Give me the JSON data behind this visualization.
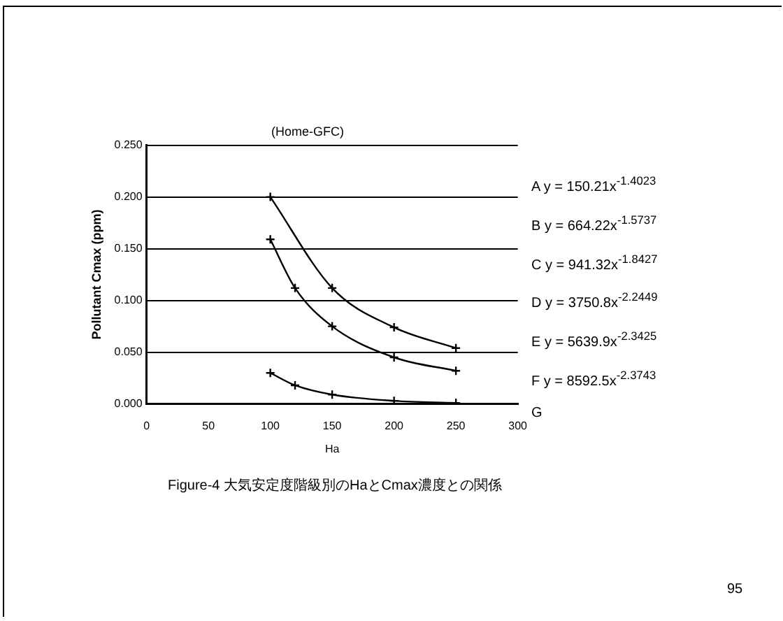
{
  "chart_data": {
    "type": "line",
    "title": "(Home-GFC)",
    "xlabel": "Ha",
    "ylabel": "Pollutant Cmax (ppm)",
    "x": [
      100,
      120,
      150,
      200,
      250
    ],
    "series": [
      {
        "color": "#000000",
        "x": [
          100,
          150,
          200,
          250
        ],
        "values": [
          0.2,
          0.112,
          0.074,
          0.054
        ]
      },
      {
        "color": "#000000",
        "values": [
          0.159,
          0.112,
          0.075,
          0.045,
          0.032
        ]
      },
      {
        "color": "#000000",
        "values": [
          0.03,
          0.018,
          0.009,
          0.003,
          0.001
        ]
      }
    ],
    "xlim": [
      0,
      300
    ],
    "xticks": [
      0,
      50,
      100,
      150,
      200,
      250,
      300
    ],
    "ylim": [
      0,
      0.25
    ],
    "yticks": [
      {
        "value": 0,
        "label": "0.000"
      },
      {
        "value": 0.05,
        "label": "0.050"
      },
      {
        "value": 0.1,
        "label": "0.100"
      },
      {
        "value": 0.15,
        "label": "0.150"
      },
      {
        "value": 0.2,
        "label": "0.200"
      },
      {
        "value": 0.25,
        "label": "0.250"
      }
    ],
    "grid": "y",
    "marker": "cross",
    "line_style": "solid",
    "legend": false,
    "annotations": [
      "A  y = 150.21x$^{-1.4023}$",
      "B  y = 664.22x$^{-1.5737}$",
      "C  y = 941.32x$^{-1.8427}$",
      "D  y = 3750.8x$^{-2.2449}$",
      "E  y = 5639.9x$^{-2.3425}$",
      "F  y = 8592.5x$^{-2.3743}$",
      "G",
      "Figure-4 大気安定度階級別のHaとCmax濃度との関係",
      "95"
    ]
  }
}
